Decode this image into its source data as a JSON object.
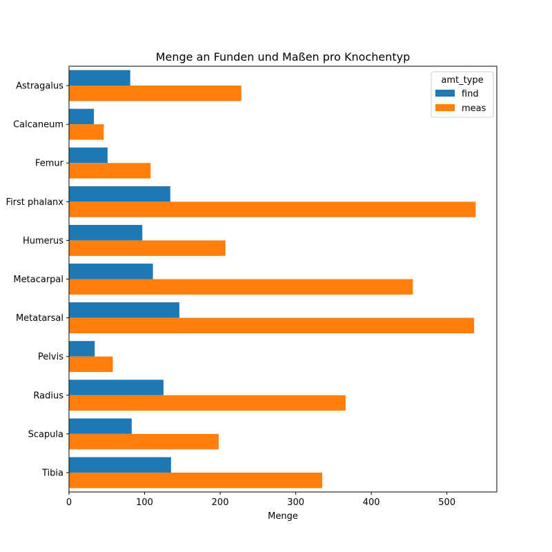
{
  "chart_data": {
    "type": "bar",
    "orientation": "horizontal",
    "title": "Menge an Funden und Maßen pro Knochentyp",
    "xlabel": "Menge",
    "ylabel": "",
    "xlim": [
      0,
      566
    ],
    "x_ticks": [
      0,
      100,
      200,
      300,
      400,
      500
    ],
    "grid": false,
    "legend": {
      "title": "amt_type",
      "placement": "top-right"
    },
    "categories": [
      "Astragalus",
      "Calcaneum",
      "Femur",
      "First phalanx",
      "Humerus",
      "Metacarpal",
      "Metatarsal",
      "Pelvis",
      "Radius",
      "Scapula",
      "Tibia"
    ],
    "series": [
      {
        "name": "find",
        "color": "#1f77b4",
        "values": [
          81,
          33,
          51,
          134,
          97,
          111,
          146,
          34,
          125,
          83,
          135
        ]
      },
      {
        "name": "meas",
        "color": "#ff7f0e",
        "values": [
          228,
          46,
          108,
          538,
          207,
          455,
          536,
          58,
          366,
          198,
          335
        ]
      }
    ]
  }
}
